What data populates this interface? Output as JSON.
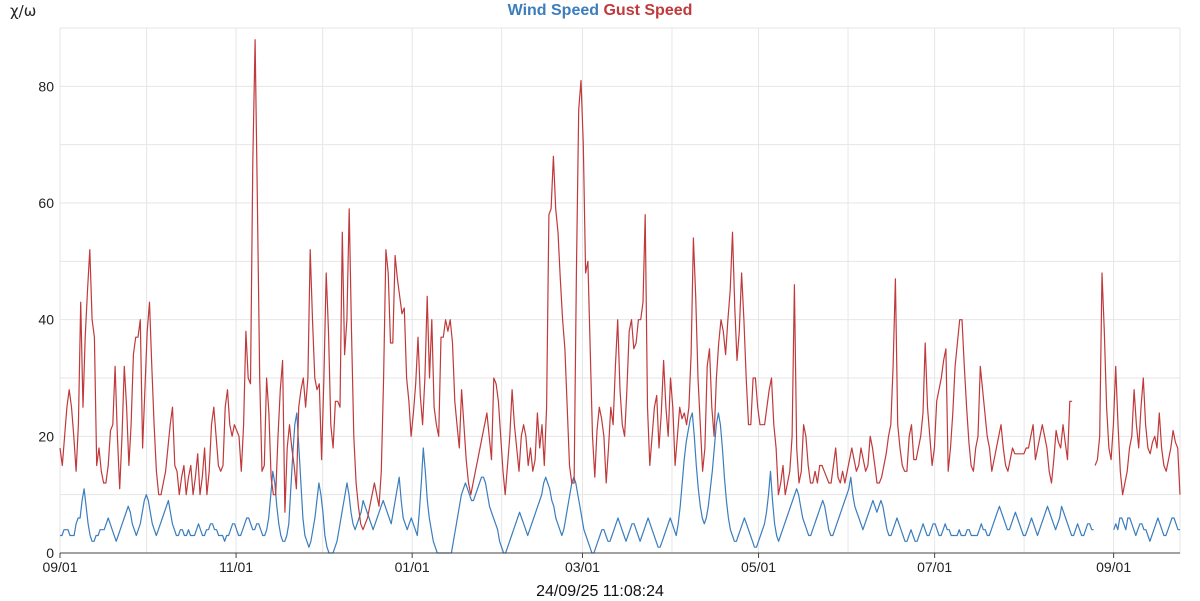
{
  "chart_data": {
    "type": "line",
    "ylabel": "χ/ω",
    "ylim": [
      0,
      90
    ],
    "yticks": [
      0,
      20,
      40,
      60,
      80
    ],
    "grid": true,
    "legend": "top-center",
    "x_tick_labels": [
      "09/01",
      "11/01",
      "01/01",
      "03/01",
      "05/01",
      "07/01",
      "09/01"
    ],
    "x_ticks": [
      "2024-09-01",
      "2024-11-01",
      "2025-01-01",
      "2025-03-01",
      "2025-05-01",
      "2025-07-01",
      "2025-09-01"
    ],
    "x_start": "2024-09-01",
    "x_end": "2025-09-24",
    "series": [
      {
        "name": "Wind Speed",
        "color": "#3b7dbd",
        "values": [
          3,
          3,
          4,
          4,
          4,
          3,
          3,
          3,
          5,
          6,
          6,
          9,
          11,
          8,
          5,
          3,
          2,
          2,
          3,
          3,
          4,
          4,
          4,
          5,
          6,
          5,
          4,
          3,
          2,
          3,
          4,
          5,
          6,
          7,
          8,
          7,
          5,
          4,
          3,
          4,
          5,
          7,
          9,
          10,
          9,
          7,
          5,
          4,
          3,
          4,
          5,
          6,
          7,
          8,
          9,
          7,
          5,
          4,
          3,
          3,
          4,
          4,
          3,
          3,
          4,
          3,
          3,
          3,
          4,
          5,
          4,
          3,
          3,
          4,
          4,
          5,
          5,
          4,
          4,
          3,
          3,
          3,
          2,
          3,
          3,
          4,
          5,
          5,
          4,
          3,
          3,
          4,
          5,
          6,
          6,
          5,
          4,
          4,
          5,
          5,
          4,
          3,
          3,
          4,
          6,
          10,
          14,
          12,
          8,
          5,
          3,
          2,
          2,
          3,
          5,
          11,
          17,
          22,
          24,
          18,
          12,
          6,
          3,
          2,
          1,
          2,
          4,
          6,
          9,
          12,
          10,
          7,
          3,
          1,
          0,
          0,
          0,
          1,
          2,
          4,
          6,
          8,
          10,
          12,
          10,
          7,
          5,
          4,
          5,
          6,
          7,
          9,
          8,
          7,
          6,
          5,
          4,
          5,
          6,
          7,
          8,
          9,
          8,
          7,
          6,
          5,
          7,
          9,
          11,
          13,
          9,
          6,
          5,
          4,
          5,
          6,
          5,
          4,
          3,
          7,
          12,
          18,
          14,
          9,
          6,
          4,
          2,
          1,
          0,
          0,
          0,
          0,
          0,
          0,
          0,
          0,
          2,
          4,
          6,
          8,
          10,
          11,
          12,
          11,
          10,
          9,
          9,
          10,
          11,
          12,
          13,
          13,
          12,
          10,
          8,
          7,
          6,
          5,
          4,
          2,
          1,
          0,
          0,
          1,
          2,
          3,
          4,
          5,
          6,
          7,
          6,
          5,
          4,
          3,
          4,
          5,
          6,
          7,
          8,
          9,
          10,
          12,
          13,
          12,
          11,
          9,
          8,
          6,
          5,
          4,
          3,
          4,
          6,
          8,
          10,
          12,
          13,
          12,
          10,
          8,
          6,
          4,
          3,
          2,
          1,
          0,
          0,
          1,
          2,
          3,
          4,
          4,
          3,
          2,
          2,
          3,
          4,
          5,
          6,
          5,
          4,
          3,
          2,
          3,
          4,
          5,
          5,
          4,
          3,
          2,
          3,
          4,
          5,
          6,
          5,
          4,
          3,
          2,
          1,
          1,
          2,
          3,
          4,
          5,
          6,
          5,
          4,
          3,
          5,
          8,
          12,
          16,
          19,
          21,
          23,
          24,
          20,
          15,
          11,
          8,
          6,
          5,
          6,
          8,
          11,
          14,
          18,
          22,
          24,
          22,
          18,
          13,
          9,
          6,
          4,
          3,
          2,
          2,
          3,
          4,
          5,
          6,
          5,
          4,
          3,
          2,
          1,
          1,
          2,
          3,
          4,
          5,
          7,
          10,
          14,
          9,
          5,
          3,
          2,
          3,
          4,
          5,
          6,
          7,
          8,
          9,
          10,
          11,
          10,
          8,
          6,
          5,
          4,
          3,
          3,
          4,
          5,
          6,
          7,
          8,
          9,
          8,
          6,
          4,
          3,
          3,
          4,
          5,
          6,
          7,
          8,
          9,
          10,
          11,
          13,
          10,
          8,
          7,
          6,
          5,
          4,
          5,
          6,
          7,
          8,
          9,
          8,
          7,
          8,
          9,
          8,
          6,
          4,
          3,
          3,
          4,
          5,
          6,
          5,
          4,
          3,
          2,
          2,
          3,
          4,
          3,
          2,
          2,
          3,
          4,
          5,
          4,
          3,
          3,
          4,
          5,
          5,
          4,
          3,
          3,
          4,
          5,
          4,
          4,
          3,
          3,
          3,
          3,
          4,
          3,
          3,
          3,
          4,
          4,
          3,
          3,
          3,
          3,
          4,
          5,
          4,
          4,
          3,
          3,
          4,
          5,
          6,
          7,
          8,
          7,
          6,
          5,
          4,
          4,
          5,
          6,
          7,
          6,
          5,
          4,
          3,
          3,
          4,
          5,
          6,
          5,
          4,
          3,
          4,
          5,
          6,
          7,
          8,
          7,
          6,
          5,
          4,
          5,
          6,
          8,
          7,
          6,
          5,
          4,
          3,
          3,
          4,
          5,
          4,
          3,
          3,
          4,
          5,
          5,
          4,
          4,
          null,
          null,
          null,
          null,
          null,
          null,
          null,
          null,
          null,
          4,
          5,
          4,
          6,
          6,
          5,
          4,
          6,
          6,
          5,
          4,
          3,
          4,
          5,
          5,
          4,
          4,
          3,
          2,
          3,
          4,
          5,
          6,
          5,
          4,
          3,
          3,
          4,
          5,
          6,
          6,
          5,
          4,
          4
        ]
      },
      {
        "name": "Gust Speed",
        "color": "#c0393b",
        "values": [
          18,
          15,
          20,
          25,
          28,
          25,
          20,
          14,
          22,
          43,
          25,
          37,
          45,
          52,
          40,
          37,
          15,
          18,
          14,
          12,
          12,
          15,
          21,
          22,
          32,
          20,
          11,
          20,
          32,
          25,
          15,
          22,
          34,
          37,
          37,
          40,
          18,
          28,
          38,
          43,
          32,
          22,
          14,
          10,
          10,
          12,
          14,
          18,
          22,
          25,
          15,
          14,
          10,
          13,
          15,
          10,
          13,
          15,
          10,
          13,
          17,
          10,
          13,
          18,
          10,
          14,
          22,
          25,
          20,
          15,
          14,
          15,
          25,
          28,
          22,
          20,
          22,
          21,
          20,
          14,
          22,
          38,
          30,
          29,
          67,
          88,
          60,
          30,
          14,
          15,
          30,
          24,
          13,
          10,
          10,
          20,
          28,
          33,
          7,
          18,
          22,
          18,
          15,
          11,
          25,
          28,
          30,
          25,
          30,
          52,
          40,
          30,
          28,
          29,
          16,
          30,
          48,
          38,
          22,
          18,
          26,
          26,
          25,
          55,
          34,
          40,
          59,
          38,
          20,
          12,
          8,
          5,
          4,
          5,
          6,
          8,
          10,
          12,
          10,
          8,
          14,
          30,
          52,
          48,
          36,
          36,
          51,
          47,
          44,
          41,
          42,
          30,
          26,
          20,
          24,
          29,
          37,
          27,
          22,
          30,
          44,
          30,
          40,
          25,
          22,
          20,
          37,
          37,
          40,
          38,
          40,
          36,
          26,
          22,
          18,
          28,
          22,
          16,
          12,
          10,
          12,
          14,
          16,
          18,
          20,
          22,
          24,
          20,
          16,
          30,
          29,
          26,
          20,
          14,
          10,
          15,
          20,
          28,
          22,
          18,
          14,
          20,
          22,
          20,
          15,
          18,
          14,
          16,
          24,
          18,
          22,
          15,
          25,
          58,
          59,
          68,
          59,
          55,
          47,
          40,
          35,
          25,
          15,
          12,
          12,
          48,
          76,
          81,
          70,
          48,
          50,
          35,
          20,
          13,
          21,
          25,
          23,
          20,
          12,
          18,
          25,
          22,
          32,
          40,
          28,
          22,
          20,
          28,
          38,
          40,
          35,
          36,
          40,
          40,
          43,
          58,
          25,
          15,
          20,
          25,
          27,
          18,
          24,
          33,
          25,
          20,
          30,
          25,
          15,
          20,
          25,
          23,
          24,
          22,
          25,
          34,
          54,
          44,
          30,
          22,
          14,
          18,
          32,
          35,
          25,
          20,
          30,
          36,
          40,
          38,
          34,
          40,
          45,
          55,
          42,
          33,
          38,
          48,
          40,
          30,
          22,
          22,
          30,
          30,
          25,
          22,
          22,
          22,
          25,
          28,
          30,
          22,
          18,
          10,
          12,
          15,
          10,
          12,
          14,
          20,
          46,
          18,
          12,
          14,
          22,
          20,
          15,
          12,
          12,
          14,
          12,
          15,
          15,
          14,
          13,
          12,
          12,
          15,
          18,
          13,
          12,
          14,
          12,
          14,
          16,
          18,
          16,
          14,
          15,
          18,
          16,
          14,
          15,
          20,
          18,
          15,
          12,
          12,
          13,
          15,
          17,
          20,
          22,
          32,
          47,
          22,
          18,
          15,
          14,
          14,
          20,
          22,
          16,
          16,
          18,
          20,
          24,
          36,
          25,
          20,
          15,
          18,
          26,
          28,
          30,
          33,
          35,
          14,
          18,
          24,
          32,
          36,
          40,
          40,
          32,
          25,
          19,
          15,
          14,
          18,
          20,
          32,
          28,
          24,
          20,
          18,
          14,
          16,
          18,
          20,
          22,
          18,
          15,
          14,
          16,
          18,
          17,
          17,
          17,
          17,
          17,
          18,
          18,
          20,
          22,
          16,
          18,
          20,
          22,
          20,
          18,
          14,
          12,
          16,
          21,
          19,
          18,
          22,
          19,
          16,
          26,
          26,
          null,
          null,
          null,
          null,
          null,
          null,
          null,
          null,
          null,
          15,
          16,
          20,
          48,
          38,
          25,
          18,
          16,
          22,
          32,
          22,
          14,
          10,
          12,
          14,
          18,
          20,
          28,
          22,
          18,
          25,
          30,
          22,
          18,
          17,
          19,
          20,
          18,
          24,
          18,
          15,
          14,
          16,
          18,
          21,
          19,
          18,
          10
        ]
      }
    ]
  },
  "footer": {
    "timestamp": "24/09/25 11:08:24"
  }
}
